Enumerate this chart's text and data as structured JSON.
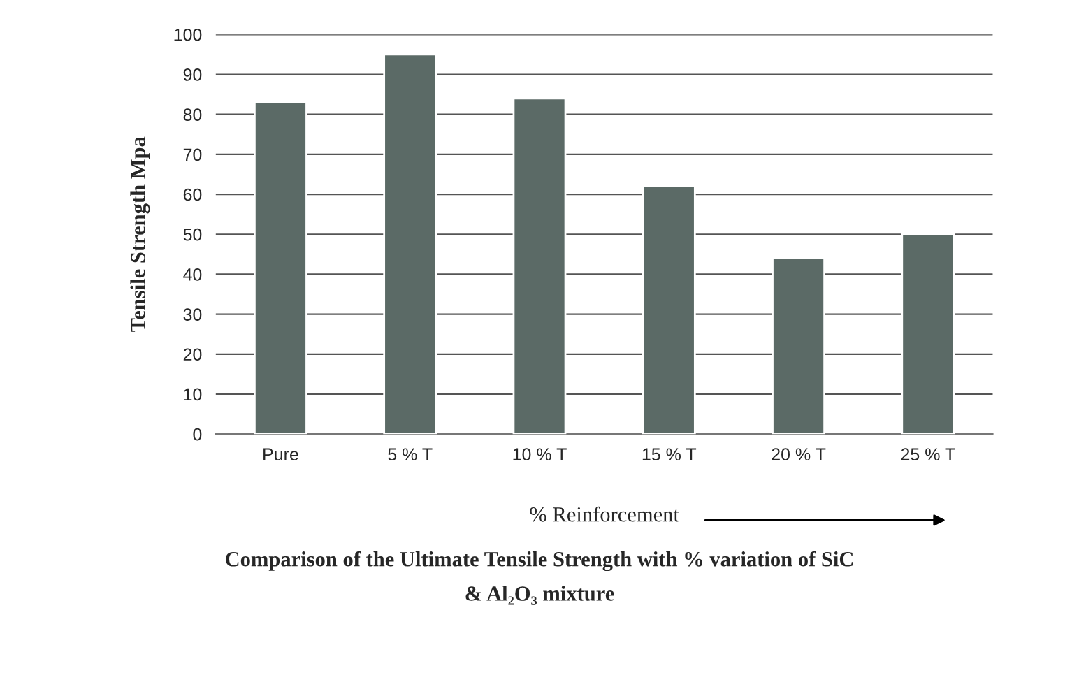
{
  "chart_data": {
    "type": "bar",
    "title": "Comparison of the Ultimate Tensile Strength with % variation of SiC\n& Al₂O₃ mixture",
    "xlabel": "% Reinforcement",
    "ylabel": "Tensile Strength Mpa",
    "categories": [
      "Pure",
      "5 % T",
      "10 % T",
      "15 % T",
      "20 % T",
      "25 % T"
    ],
    "values": [
      83,
      95,
      84,
      62,
      44,
      50
    ],
    "color": "#5b6a66",
    "ylim": [
      0,
      100
    ],
    "yticks": [
      0,
      10,
      20,
      30,
      40,
      50,
      60,
      70,
      80,
      90,
      100
    ],
    "grid": "y"
  }
}
